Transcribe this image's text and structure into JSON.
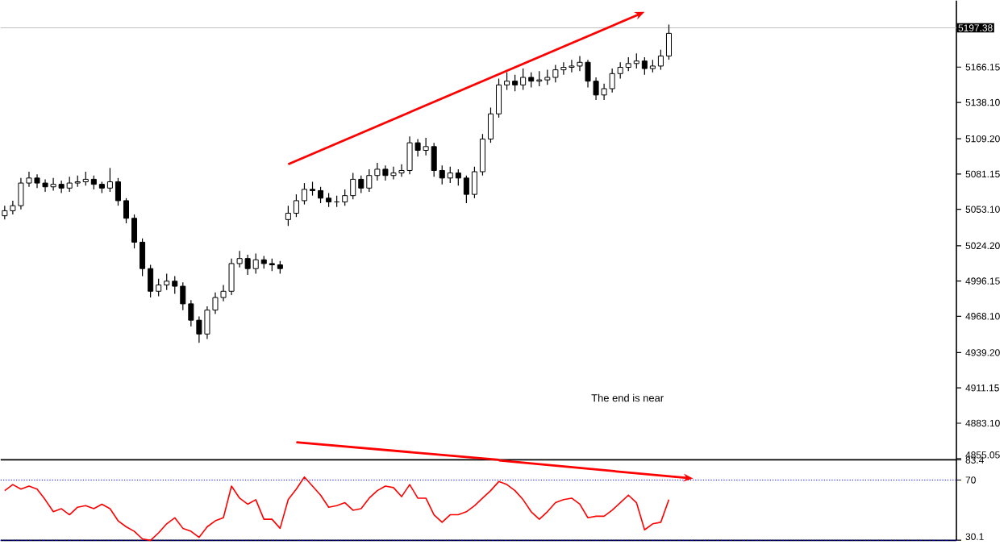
{
  "chart_data": [
    {
      "type": "candlestick",
      "color": "#000000",
      "categories": [
        null,
        null,
        null,
        null,
        null,
        null,
        null,
        null,
        null,
        null,
        null,
        null,
        null,
        null,
        null,
        null,
        null,
        null,
        null,
        null,
        null,
        null,
        null,
        null,
        null,
        null,
        null,
        null,
        null,
        null,
        null,
        null,
        null,
        null,
        null,
        null,
        null,
        null,
        null,
        null,
        null,
        null,
        null,
        null,
        null,
        null,
        null,
        null,
        null,
        null,
        null,
        null,
        null,
        null,
        null,
        null,
        null,
        null,
        null,
        null,
        null,
        null,
        null,
        null,
        null,
        null,
        null,
        null,
        null,
        null,
        null,
        null,
        null,
        null,
        null,
        null,
        null,
        null,
        null,
        null,
        null,
        null,
        null,
        null,
        null,
        null,
        null,
        null,
        null,
        null,
        null,
        null,
        null,
        null,
        null,
        null,
        null,
        null,
        null,
        null,
        null,
        null,
        null,
        null,
        null,
        null,
        null,
        null,
        null,
        null,
        null,
        null,
        null,
        null,
        null,
        null,
        null,
        null
      ],
      "ohlc": [
        [
          5048,
          5056,
          5045,
          5052
        ],
        [
          5052,
          5060,
          5049,
          5056
        ],
        [
          5056,
          5078,
          5053,
          5074
        ],
        [
          5074,
          5083,
          5071,
          5078
        ],
        [
          5078,
          5081,
          5070,
          5074
        ],
        [
          5074,
          5077,
          5067,
          5071
        ],
        [
          5071,
          5078,
          5068,
          5073
        ],
        [
          5073,
          5076,
          5066,
          5070
        ],
        [
          5070,
          5079,
          5067,
          5074
        ],
        [
          5074,
          5080,
          5071,
          5075
        ],
        [
          5075,
          5083,
          5072,
          5077
        ],
        [
          5077,
          5080,
          5069,
          5073
        ],
        [
          5073,
          5075,
          5066,
          5070
        ],
        [
          5070,
          5086,
          5067,
          5075
        ],
        [
          5075,
          5078,
          5056,
          5060
        ],
        [
          5060,
          5062,
          5042,
          5046
        ],
        [
          5046,
          5049,
          5022,
          5027
        ],
        [
          5027,
          5030,
          5000,
          5006
        ],
        [
          5006,
          5009,
          4983,
          4988
        ],
        [
          4988,
          4998,
          4984,
          4993
        ],
        [
          4993,
          5002,
          4989,
          4996
        ],
        [
          4996,
          5000,
          4986,
          4992
        ],
        [
          4992,
          4995,
          4973,
          4978
        ],
        [
          4978,
          4981,
          4960,
          4965
        ],
        [
          4965,
          4968,
          4947,
          4954
        ],
        [
          4954,
          4976,
          4950,
          4973
        ],
        [
          4973,
          4987,
          4970,
          4983
        ],
        [
          4983,
          4993,
          4980,
          4988
        ],
        [
          4988,
          5014,
          4985,
          5010
        ],
        [
          5010,
          5020,
          5007,
          5014
        ],
        [
          5014,
          5017,
          5001,
          5006
        ],
        [
          5006,
          5018,
          5002,
          5013
        ],
        [
          5013,
          5016,
          5006,
          5010
        ],
        [
          5010,
          5014,
          5004,
          5009
        ],
        [
          5009,
          5012,
          5002,
          5006
        ],
        [
          5045,
          5056,
          5040,
          5050
        ],
        [
          5050,
          5065,
          5047,
          5060
        ],
        [
          5060,
          5074,
          5057,
          5069
        ],
        [
          5069,
          5075,
          5064,
          5068
        ],
        [
          5068,
          5071,
          5058,
          5062
        ],
        [
          5062,
          5066,
          5055,
          5059
        ],
        [
          5059,
          5064,
          5055,
          5059
        ],
        [
          5059,
          5069,
          5056,
          5064
        ],
        [
          5064,
          5082,
          5061,
          5077
        ],
        [
          5077,
          5080,
          5066,
          5070
        ],
        [
          5070,
          5085,
          5067,
          5080
        ],
        [
          5080,
          5090,
          5076,
          5085
        ],
        [
          5085,
          5088,
          5076,
          5080
        ],
        [
          5080,
          5087,
          5077,
          5082
        ],
        [
          5082,
          5089,
          5079,
          5084
        ],
        [
          5084,
          5111,
          5081,
          5106
        ],
        [
          5106,
          5109,
          5095,
          5100
        ],
        [
          5100,
          5110,
          5096,
          5103
        ],
        [
          5103,
          5106,
          5079,
          5084
        ],
        [
          5084,
          5088,
          5073,
          5078
        ],
        [
          5078,
          5087,
          5074,
          5082
        ],
        [
          5082,
          5085,
          5072,
          5078
        ],
        [
          5078,
          5080,
          5058,
          5065
        ],
        [
          5065,
          5087,
          5062,
          5083
        ],
        [
          5083,
          5113,
          5080,
          5109
        ],
        [
          5109,
          5134,
          5106,
          5129
        ],
        [
          5129,
          5157,
          5126,
          5152
        ],
        [
          5152,
          5162,
          5148,
          5155
        ],
        [
          5155,
          5160,
          5147,
          5152
        ],
        [
          5152,
          5165,
          5148,
          5158
        ],
        [
          5158,
          5162,
          5150,
          5155
        ],
        [
          5155,
          5163,
          5151,
          5156
        ],
        [
          5156,
          5164,
          5152,
          5158
        ],
        [
          5158,
          5168,
          5154,
          5164
        ],
        [
          5164,
          5170,
          5160,
          5166
        ],
        [
          5166,
          5172,
          5162,
          5167
        ],
        [
          5167,
          5175,
          5163,
          5170
        ],
        [
          5170,
          5172,
          5150,
          5155
        ],
        [
          5155,
          5158,
          5140,
          5144
        ],
        [
          5144,
          5153,
          5140,
          5149
        ],
        [
          5149,
          5165,
          5146,
          5161
        ],
        [
          5161,
          5170,
          5157,
          5166
        ],
        [
          5166,
          5174,
          5163,
          5169
        ],
        [
          5169,
          5177,
          5165,
          5171
        ],
        [
          5171,
          5174,
          5160,
          5165
        ],
        [
          5165,
          5172,
          5162,
          5167
        ],
        [
          5167,
          5180,
          5164,
          5175
        ],
        [
          5175,
          5200,
          5172,
          5193
        ],
        null,
        null,
        null,
        null,
        null,
        null,
        null,
        null,
        null,
        null,
        null,
        null,
        null,
        null,
        null,
        null,
        null,
        null,
        null,
        null,
        null,
        null,
        null,
        null,
        null,
        null,
        null,
        null,
        null,
        null,
        null,
        null,
        null,
        null,
        null
      ],
      "series": [
        {
          "type": "line",
          "color": "#ff0000",
          "values": [
            null,
            null,
            null,
            null,
            null,
            null,
            null,
            null,
            null,
            null,
            null,
            null,
            null,
            null,
            null,
            null,
            null,
            null,
            null,
            null,
            null,
            null,
            null,
            null,
            null,
            null,
            null,
            null,
            null,
            null,
            null,
            null,
            null,
            null,
            null,
            5089,
            null,
            null,
            null,
            null,
            null,
            null,
            null,
            null,
            null,
            null,
            null,
            null,
            null,
            null,
            null,
            null,
            null,
            null,
            null,
            null,
            null,
            null,
            null,
            null,
            null,
            null,
            null,
            null,
            null,
            null,
            null,
            null,
            null,
            null,
            null,
            null,
            null,
            null,
            null,
            null,
            null,
            null,
            null,
            5210,
            null,
            null,
            null,
            null,
            null,
            null,
            null,
            null,
            null,
            null,
            null,
            null,
            null,
            null,
            null,
            null,
            null,
            null,
            null,
            null,
            null,
            null,
            null,
            null,
            null,
            null,
            null,
            null,
            null,
            null,
            null,
            null,
            null,
            null,
            null,
            null,
            null,
            null
          ]
        },
        {
          "type": "line",
          "color": "#ff0000",
          "values": [
            null,
            null,
            null,
            null,
            null,
            null,
            null,
            null,
            null,
            null,
            null,
            null,
            null,
            null,
            null,
            null,
            null,
            null,
            null,
            null,
            null,
            null,
            null,
            null,
            null,
            null,
            null,
            null,
            null,
            null,
            null,
            null,
            null,
            null,
            null,
            null,
            4868,
            null,
            null,
            null,
            null,
            null,
            null,
            null,
            null,
            null,
            null,
            null,
            null,
            null,
            null,
            null,
            null,
            null,
            null,
            null,
            null,
            null,
            null,
            null,
            null,
            4854,
            null,
            null,
            null,
            null,
            null,
            null,
            null,
            null,
            null,
            null,
            null,
            null,
            null,
            null,
            null,
            null,
            null,
            null,
            null,
            null,
            null,
            null,
            null,
            null,
            null,
            null,
            null,
            null,
            null,
            null,
            null,
            null,
            null,
            null,
            null,
            null,
            null,
            null,
            null,
            null,
            null,
            null,
            null,
            null,
            null,
            null,
            null,
            null,
            null,
            null,
            null,
            null,
            null,
            null,
            null,
            null
          ]
        }
      ],
      "ylim": [
        4854,
        5219
      ],
      "yticks": [
        5166.15,
        {
          "value": 5138.1,
          "label": "5138.10"
        },
        {
          "value": 5109.2,
          "label": "5109.20"
        },
        5081.15,
        {
          "value": 5053.1,
          "label": "5053.10"
        },
        {
          "value": 5024.2,
          "label": "5024.20"
        },
        4996.15,
        {
          "value": 4968.1,
          "label": "4968.10"
        },
        {
          "value": 4939.2,
          "label": "4939.20"
        },
        4911.15,
        {
          "value": 4883.1,
          "label": "4883.10"
        },
        4855.05
      ],
      "ref_lines": [
        {
          "axis": "y",
          "value": 5197.38,
          "label": "5197.38",
          "color": "#c0c0c0",
          "line_style": "solid"
        }
      ],
      "annotations": [
        "The end is near"
      ],
      "tick_labels": "y"
    },
    {
      "type": "line",
      "categories": [
        null,
        null,
        null,
        null,
        null,
        null,
        null,
        null,
        null,
        null,
        null,
        null,
        null,
        null,
        null,
        null,
        null,
        null,
        null,
        null,
        null,
        null,
        null,
        null,
        null,
        null,
        null,
        null,
        null,
        null,
        null,
        null,
        null,
        null,
        null,
        null,
        null,
        null,
        null,
        null,
        null,
        null,
        null,
        null,
        null,
        null,
        null,
        null,
        null,
        null,
        null,
        null,
        null,
        null,
        null,
        null,
        null,
        null,
        null,
        null,
        null,
        null,
        null,
        null,
        null,
        null,
        null,
        null,
        null,
        null,
        null,
        null,
        null,
        null,
        null,
        null,
        null,
        null,
        null,
        null,
        null,
        null,
        null,
        null,
        null,
        null,
        null,
        null,
        null,
        null,
        null,
        null,
        null,
        null,
        null,
        null,
        null,
        null,
        null,
        null,
        null,
        null,
        null,
        null,
        null,
        null,
        null,
        null,
        null,
        null,
        null,
        null,
        null,
        null,
        null,
        null,
        null,
        null
      ],
      "series": [
        {
          "color": "#ff0000",
          "values": [
            63,
            67,
            64,
            66,
            64,
            57,
            49,
            51,
            47,
            52,
            53,
            51,
            54,
            51,
            43,
            39,
            36,
            31,
            30,
            35,
            41,
            45,
            38,
            36,
            32,
            39,
            43,
            45,
            66,
            58,
            54,
            57,
            44,
            44,
            38,
            57,
            64,
            72,
            66,
            60,
            52,
            53,
            55,
            50,
            51,
            58,
            63,
            66,
            65,
            59,
            67,
            58,
            58,
            47,
            42,
            47,
            47,
            49,
            53,
            58,
            63,
            69,
            67,
            63,
            57,
            49,
            44,
            49,
            55,
            57,
            58,
            54,
            45,
            46,
            46,
            50,
            55,
            60,
            55,
            37,
            41,
            42,
            57,
            null,
            null,
            null,
            null,
            null,
            null,
            null,
            null,
            null,
            null,
            null,
            null,
            null,
            null,
            null,
            null,
            null,
            null,
            null,
            null,
            null,
            null,
            null,
            null,
            null,
            null,
            null,
            null,
            null,
            null,
            null,
            null,
            null,
            null,
            null
          ]
        },
        {
          "type": "line",
          "color": "#ff0000",
          "values": [
            null,
            null,
            null,
            null,
            null,
            null,
            null,
            null,
            null,
            null,
            null,
            null,
            null,
            null,
            null,
            null,
            null,
            null,
            null,
            null,
            null,
            null,
            null,
            null,
            null,
            null,
            null,
            null,
            null,
            null,
            null,
            null,
            null,
            null,
            null,
            null,
            null,
            null,
            null,
            null,
            null,
            null,
            null,
            null,
            null,
            null,
            null,
            null,
            null,
            null,
            null,
            null,
            null,
            null,
            null,
            null,
            null,
            null,
            null,
            null,
            null,
            83,
            null,
            null,
            null,
            null,
            null,
            null,
            null,
            null,
            null,
            null,
            null,
            null,
            null,
            null,
            null,
            null,
            null,
            null,
            null,
            null,
            null,
            null,
            null,
            71,
            null,
            null,
            null,
            null,
            null,
            null,
            null,
            null,
            null,
            null,
            null,
            null,
            null,
            null,
            null,
            null,
            null,
            null,
            null,
            null,
            null,
            null,
            null,
            null,
            null,
            null,
            null,
            null,
            null,
            null,
            null,
            null
          ]
        }
      ],
      "ylim": [
        30,
        83.4
      ],
      "yticks": [
        83.4,
        70,
        30.1
      ],
      "ref_lines": [
        {
          "axis": "y",
          "value": 70,
          "color": "#0000ff",
          "line_style": "dotted"
        },
        {
          "axis": "y",
          "value": 30,
          "color": "#0000ff",
          "line_style": "dotted"
        }
      ],
      "tick_labels": "y"
    }
  ]
}
